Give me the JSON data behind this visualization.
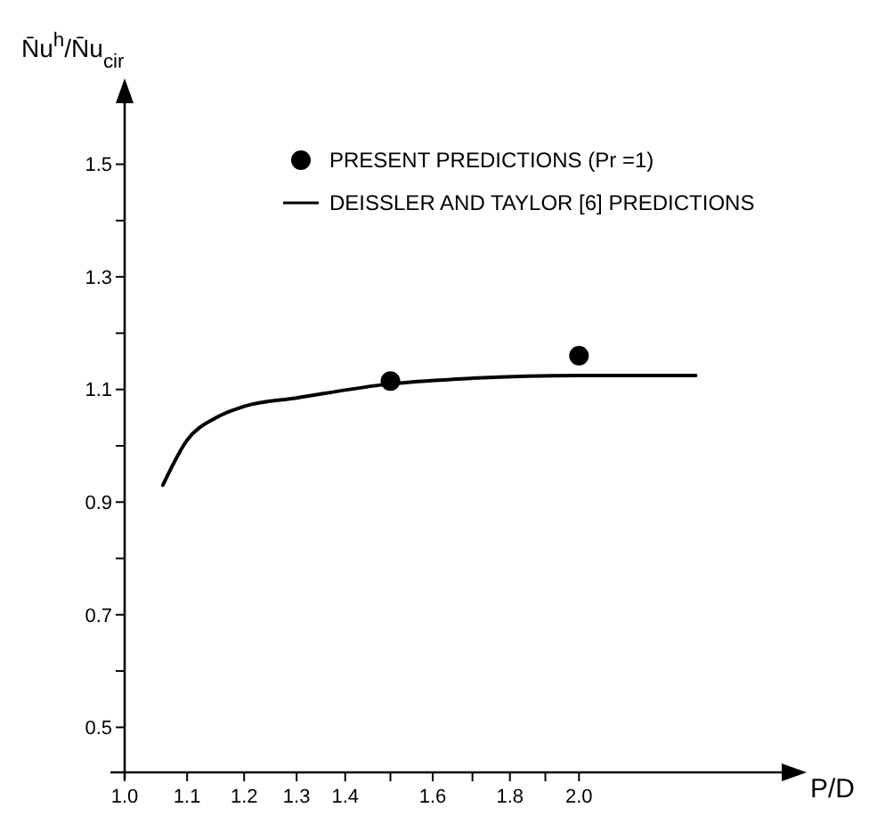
{
  "chart_data": {
    "type": "line",
    "xlabel": "P/D",
    "ylabel": "N̄u$^{h}$/N̄u$_{cir}$",
    "xlim": [
      1.0,
      2.8
    ],
    "ylim": [
      0.42,
      1.64
    ],
    "xticks": [
      {
        "value": 1.0,
        "label": "1.0"
      },
      {
        "value": 1.1,
        "label": "1.1"
      },
      {
        "value": 1.2,
        "label": "1.2"
      },
      {
        "value": 1.3,
        "label": "1.3"
      },
      {
        "value": 1.4,
        "label": "1.4"
      },
      {
        "value": 1.5,
        "label": null
      },
      {
        "value": 1.6,
        "label": "1.6"
      },
      {
        "value": 1.7,
        "label": null
      },
      {
        "value": 1.8,
        "label": "1.8"
      },
      {
        "value": 1.9,
        "label": null
      },
      {
        "value": 2.0,
        "label": "2.0"
      }
    ],
    "yticks": [
      {
        "value": 0.5,
        "label": "0.5"
      },
      {
        "value": 0.6,
        "label": null
      },
      {
        "value": 0.7,
        "label": "0.7"
      },
      {
        "value": 0.8,
        "label": null
      },
      {
        "value": 0.9,
        "label": "0.9"
      },
      {
        "value": 1.0,
        "label": null
      },
      {
        "value": 1.1,
        "label": "1.1"
      },
      {
        "value": 1.2,
        "label": null
      },
      {
        "value": 1.3,
        "label": "1.3"
      },
      {
        "value": 1.4,
        "label": null
      },
      {
        "value": 1.5,
        "label": "1.5"
      }
    ],
    "legend": "top right",
    "grid": false,
    "log": "x",
    "series": [
      {
        "name": "PRESENT PREDICTIONS (Pr =1)",
        "type": "scatter",
        "marker": "circle",
        "color": "#000000",
        "x": [
          1.5,
          2.0
        ],
        "values": [
          1.115,
          1.16
        ]
      },
      {
        "name": "DEISSLER AND TAYLOR [6] PREDICTIONS",
        "type": "line",
        "marker": "none",
        "line_style": "solid",
        "color": "#000000",
        "x": [
          1.06,
          1.1,
          1.15,
          1.2,
          1.3,
          1.5,
          1.7,
          2.0,
          2.39
        ],
        "values": [
          0.93,
          1.01,
          1.05,
          1.07,
          1.085,
          1.11,
          1.12,
          1.125,
          1.125
        ]
      }
    ]
  }
}
